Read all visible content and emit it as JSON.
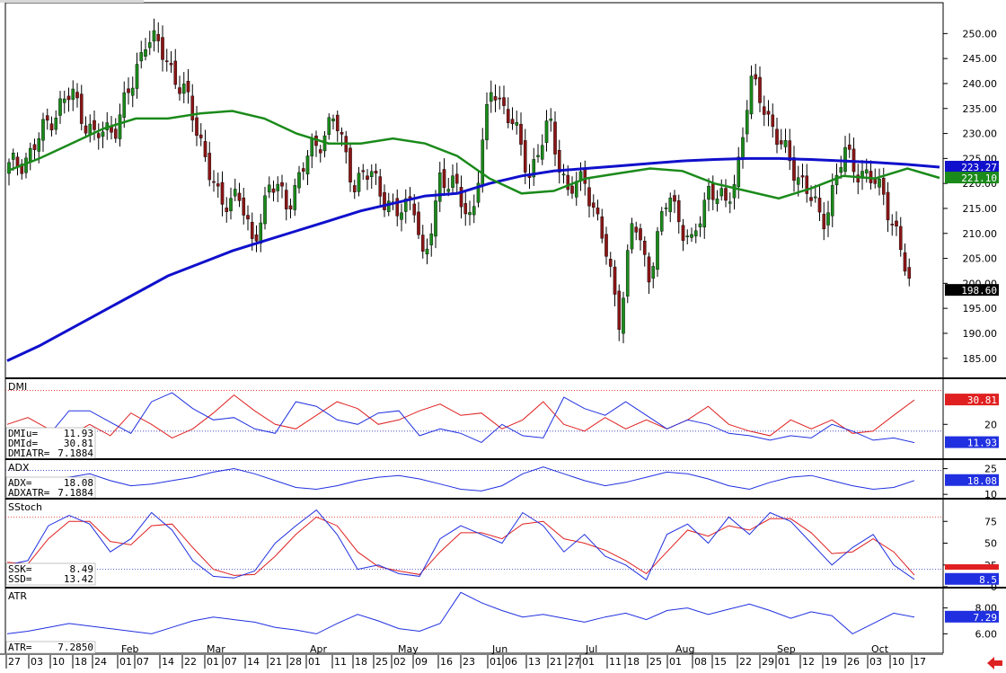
{
  "colors": {
    "up": "#1a8a1a",
    "down": "#8b1515",
    "ma_blue": "#1010cc",
    "ma_green": "#1a8a1a",
    "dmi_minus": "#e02020",
    "dmi_plus": "#2030e0",
    "adx": "#2030e0",
    "ssk": "#2030e0",
    "ssd": "#e02020",
    "atr": "#2030e0",
    "ref_red": "#e02020",
    "ref_blue": "#3030c0",
    "nav_arrow": "#dd2222"
  },
  "chart_data": [
    {
      "type": "candlestick",
      "panel": "price",
      "ylim": [
        181,
        256
      ],
      "yticks": [
        "250.00",
        "245.00",
        "240.00",
        "235.00",
        "230.00",
        "225.00",
        "220.00",
        "215.00",
        "210.00",
        "205.00",
        "200.00",
        "195.00",
        "190.00",
        "185.00"
      ],
      "series": [
        {
          "role": "ma_long",
          "values": [
            184.5,
            187.5,
            191,
            194.5,
            198,
            201.5,
            204,
            206.5,
            208.5,
            210.5,
            212.5,
            214.5,
            216,
            217.5,
            218,
            220,
            221.5,
            222.5,
            223,
            223.5,
            224,
            224.5,
            224.8,
            225,
            225,
            224.8,
            224.5,
            224.2,
            223.8,
            223.27
          ]
        },
        {
          "role": "ma_short",
          "values": [
            222.5,
            225,
            228,
            231,
            233,
            233,
            234,
            234.5,
            233,
            230,
            228,
            228,
            229,
            228,
            225.5,
            221,
            218,
            218.5,
            221,
            222,
            223,
            222.5,
            220,
            218.5,
            217,
            219,
            221.5,
            221,
            223,
            221.1
          ]
        }
      ],
      "last_tags": [
        "223.27",
        "221.10",
        "198.60"
      ]
    },
    {
      "type": "line",
      "panel": "DMI",
      "title": "DMI",
      "ylim": [
        5,
        40
      ],
      "yticks": [
        "20"
      ],
      "ref_lines": [
        35,
        17
      ],
      "series": [
        {
          "name": "DMIu",
          "values": [
            18,
            14,
            15,
            26,
            26,
            21,
            16,
            30,
            34,
            27,
            22,
            23,
            18,
            16,
            30,
            28,
            22,
            20,
            25,
            26,
            15,
            18,
            16,
            12,
            20,
            15,
            14,
            32,
            27,
            24,
            30,
            24,
            18,
            22,
            20,
            16,
            15,
            13,
            15,
            14,
            20,
            17,
            13,
            14,
            11.93
          ]
        },
        {
          "name": "DMId",
          "values": [
            20,
            23,
            18,
            15,
            20,
            15,
            25,
            20,
            14,
            18,
            25,
            33,
            26,
            20,
            18,
            24,
            30,
            27,
            20,
            22,
            26,
            29,
            24,
            25,
            18,
            22,
            30,
            20,
            17,
            23,
            18,
            22,
            18,
            22,
            28,
            20,
            17,
            15,
            22,
            18,
            22,
            16,
            17,
            24,
            30.81
          ]
        }
      ],
      "readouts": [
        {
          "label": "DMIu=",
          "value": "11.93"
        },
        {
          "label": "DMId=",
          "value": "30.81"
        },
        {
          "label": "DMIATR=",
          "value": "7.1884"
        }
      ],
      "last_tags": [
        "30.81",
        "11.93"
      ]
    },
    {
      "type": "line",
      "panel": "ADX",
      "title": "ADX",
      "ylim": [
        8,
        30
      ],
      "yticks": [
        "25",
        "10"
      ],
      "ref_lines": [
        24
      ],
      "series": [
        {
          "name": "ADX",
          "values": [
            12,
            15,
            18,
            20,
            22,
            18,
            15,
            16,
            18,
            20,
            23,
            25,
            22,
            18,
            14,
            13,
            15,
            18,
            20,
            21,
            19,
            16,
            13,
            12,
            15,
            22,
            26,
            22,
            18,
            15,
            17,
            20,
            23,
            22,
            19,
            15,
            13,
            17,
            20,
            21,
            18,
            15,
            13,
            14,
            18.08
          ]
        }
      ],
      "readouts": [
        {
          "label": "ADX=",
          "value": "18.08"
        },
        {
          "label": "ADXATR=",
          "value": "7.1884"
        }
      ],
      "last_tags": [
        "18.08"
      ]
    },
    {
      "type": "line",
      "panel": "SStoch",
      "title": "SStoch",
      "ylim": [
        0,
        100
      ],
      "yticks": [
        "75",
        "50",
        "25",
        "0"
      ],
      "ref_lines": [
        80,
        20
      ],
      "series": [
        {
          "name": "SSK",
          "values": [
            25,
            30,
            70,
            82,
            72,
            40,
            55,
            85,
            65,
            30,
            12,
            10,
            18,
            50,
            70,
            88,
            60,
            20,
            25,
            15,
            12,
            55,
            70,
            60,
            50,
            85,
            70,
            40,
            60,
            35,
            25,
            8,
            60,
            72,
            50,
            80,
            60,
            85,
            75,
            50,
            25,
            45,
            60,
            25,
            8.49
          ]
        },
        {
          "name": "SSD",
          "values": [
            28,
            26,
            55,
            75,
            75,
            52,
            48,
            70,
            72,
            45,
            20,
            13,
            14,
            35,
            60,
            80,
            70,
            40,
            23,
            18,
            14,
            40,
            62,
            62,
            55,
            72,
            75,
            55,
            50,
            42,
            30,
            15,
            40,
            65,
            58,
            70,
            65,
            78,
            78,
            62,
            38,
            40,
            55,
            40,
            13.42
          ]
        }
      ],
      "readouts": [
        {
          "label": "SSK=",
          "value": "8.49"
        },
        {
          "label": "SSD=",
          "value": "13.42"
        }
      ],
      "last_tags": [
        "8.5"
      ]
    },
    {
      "type": "line",
      "panel": "ATR",
      "title": "ATR",
      "ylim": [
        4.5,
        9.5
      ],
      "yticks": [
        "8.00",
        "6.00"
      ],
      "series": [
        {
          "name": "ATR",
          "values": [
            6.0,
            6.2,
            6.5,
            6.8,
            6.6,
            6.4,
            6.2,
            6.0,
            6.5,
            7.0,
            7.3,
            7.1,
            6.9,
            6.5,
            6.3,
            6.0,
            6.8,
            7.5,
            7.0,
            6.4,
            6.2,
            6.8,
            9.2,
            8.4,
            7.8,
            7.3,
            7.5,
            7.2,
            6.9,
            7.3,
            7.6,
            7.1,
            7.8,
            8.0,
            7.5,
            7.9,
            8.3,
            7.8,
            7.2,
            7.7,
            7.4,
            6.0,
            6.8,
            7.6,
            7.29
          ]
        }
      ],
      "readouts": [
        {
          "label": "ATR=",
          "value": "7.2850"
        }
      ],
      "last_tags": [
        "7.29"
      ]
    }
  ],
  "x_axis": {
    "months": [
      {
        "label": "Feb",
        "x": 135
      },
      {
        "label": "Mar",
        "x": 230
      },
      {
        "label": "Apr",
        "x": 345
      },
      {
        "label": "May",
        "x": 443
      },
      {
        "label": "Jun",
        "x": 548
      },
      {
        "label": "Jul",
        "x": 652
      },
      {
        "label": "Aug",
        "x": 752
      },
      {
        "label": "Sep",
        "x": 865
      },
      {
        "label": "Oct",
        "x": 970
      }
    ],
    "days": [
      "27",
      "03",
      "10",
      "18",
      "24",
      "01",
      "07",
      "14",
      "22",
      "01",
      "07",
      "14",
      "21",
      "28",
      "01",
      "11",
      "18",
      "25",
      "02",
      "09",
      "16",
      "23",
      "01",
      "06",
      "13",
      "21",
      "27",
      "01",
      "11",
      "18",
      "25",
      "01",
      "08",
      "15",
      "22",
      "29",
      "01",
      "12",
      "19",
      "26",
      "03",
      "10",
      "17"
    ]
  }
}
